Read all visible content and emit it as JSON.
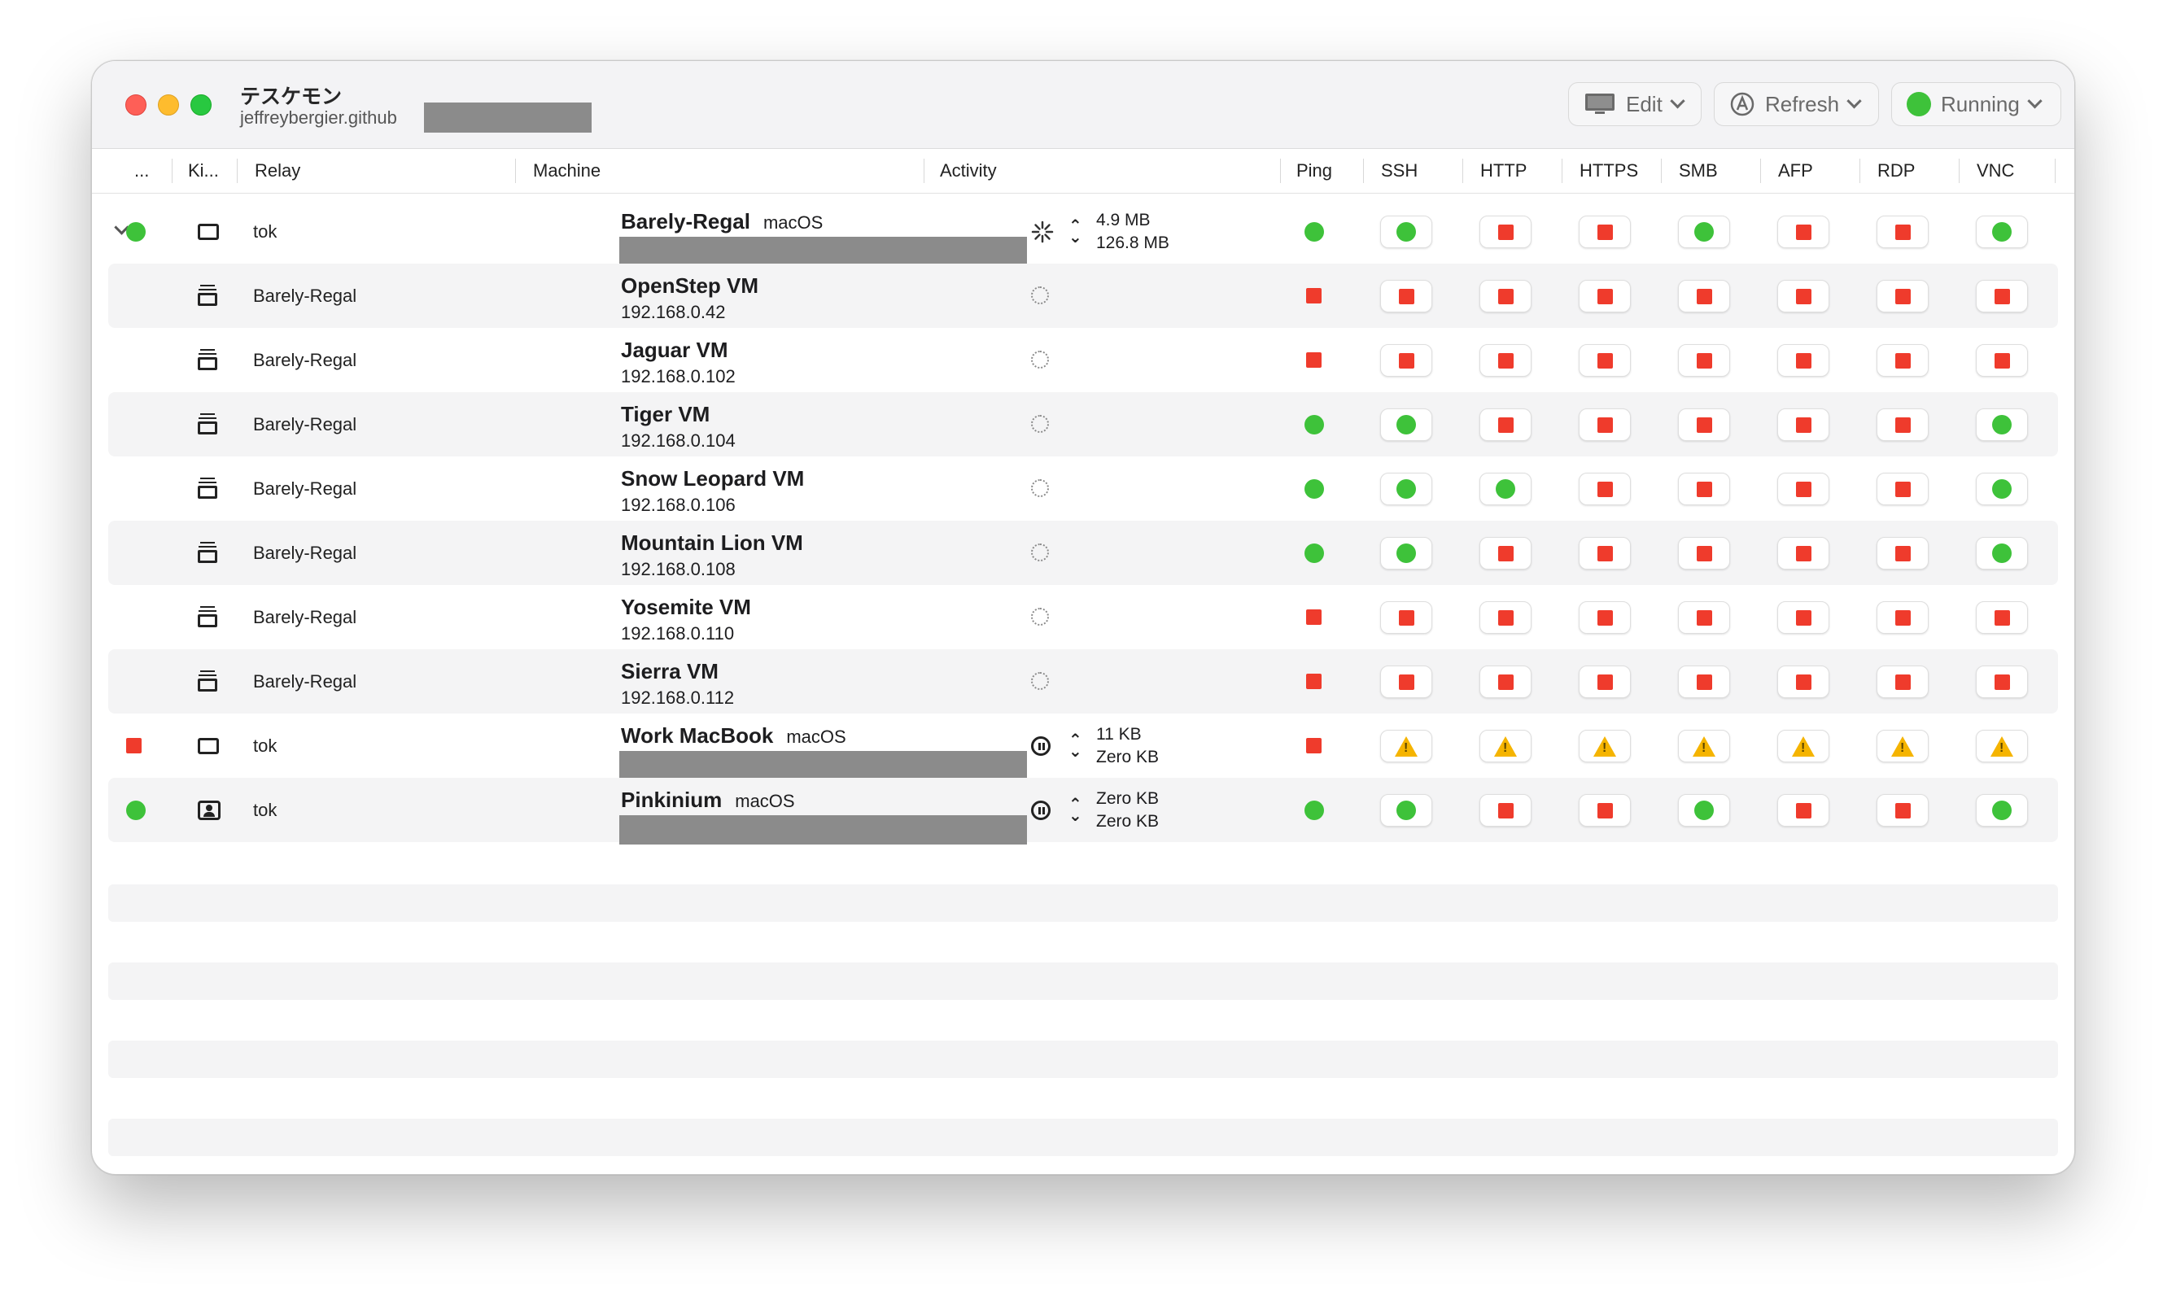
{
  "window": {
    "title": "テスケモン",
    "subtitle": "jeffreybergier.github"
  },
  "toolbar": {
    "edit_label": "Edit",
    "refresh_label": "Refresh",
    "running_label": "Running",
    "running_color": "#3ec23a"
  },
  "columns": {
    "status": "...",
    "kind": "Ki...",
    "relay": "Relay",
    "machine": "Machine",
    "activity": "Activity",
    "ping": "Ping",
    "ssh": "SSH",
    "http": "HTTP",
    "https": "HTTPS",
    "smb": "SMB",
    "afp": "AFP",
    "rdp": "RDP",
    "vnc": "VNC"
  },
  "colors": {
    "ok": "#3ec23a",
    "fail": "#ef3b2c",
    "warn": "#f5b400"
  },
  "rows": [
    {
      "status": "ok",
      "expanded": true,
      "kind": "monitor-icon",
      "relay": "tok",
      "name": "Barely-Regal",
      "os": "macOS",
      "ip": "",
      "redacted": true,
      "activity_icon": "loading-spinner-icon",
      "act1": "4.9 MB",
      "act2": "126.8 MB",
      "ping": "ok",
      "services": [
        "ok",
        "fail",
        "fail",
        "ok",
        "fail",
        "fail",
        "ok"
      ]
    },
    {
      "status": "",
      "kind": "vm-icon",
      "relay": "Barely-Regal",
      "name": "OpenStep VM",
      "os": "",
      "ip": "192.168.0.42",
      "activity_icon": "idle-circle-icon",
      "act1": "",
      "act2": "",
      "ping": "fail",
      "services": [
        "fail",
        "fail",
        "fail",
        "fail",
        "fail",
        "fail",
        "fail"
      ]
    },
    {
      "status": "",
      "kind": "vm-icon",
      "relay": "Barely-Regal",
      "name": "Jaguar VM",
      "os": "",
      "ip": "192.168.0.102",
      "activity_icon": "idle-circle-icon",
      "act1": "",
      "act2": "",
      "ping": "fail",
      "services": [
        "fail",
        "fail",
        "fail",
        "fail",
        "fail",
        "fail",
        "fail"
      ]
    },
    {
      "status": "",
      "kind": "vm-icon",
      "relay": "Barely-Regal",
      "name": "Tiger VM",
      "os": "",
      "ip": "192.168.0.104",
      "activity_icon": "idle-circle-icon",
      "act1": "",
      "act2": "",
      "ping": "ok",
      "services": [
        "ok",
        "fail",
        "fail",
        "fail",
        "fail",
        "fail",
        "ok"
      ]
    },
    {
      "status": "",
      "kind": "vm-icon",
      "relay": "Barely-Regal",
      "name": "Snow Leopard VM",
      "os": "",
      "ip": "192.168.0.106",
      "activity_icon": "idle-circle-icon",
      "act1": "",
      "act2": "",
      "ping": "ok",
      "services": [
        "ok",
        "ok",
        "fail",
        "fail",
        "fail",
        "fail",
        "ok"
      ]
    },
    {
      "status": "",
      "kind": "vm-icon",
      "relay": "Barely-Regal",
      "name": "Mountain Lion VM",
      "os": "",
      "ip": "192.168.0.108",
      "activity_icon": "idle-circle-icon",
      "act1": "",
      "act2": "",
      "ping": "ok",
      "services": [
        "ok",
        "fail",
        "fail",
        "fail",
        "fail",
        "fail",
        "ok"
      ]
    },
    {
      "status": "",
      "kind": "vm-icon",
      "relay": "Barely-Regal",
      "name": "Yosemite VM",
      "os": "",
      "ip": "192.168.0.110",
      "activity_icon": "idle-circle-icon",
      "act1": "",
      "act2": "",
      "ping": "fail",
      "services": [
        "fail",
        "fail",
        "fail",
        "fail",
        "fail",
        "fail",
        "fail"
      ]
    },
    {
      "status": "",
      "kind": "vm-icon",
      "relay": "Barely-Regal",
      "name": "Sierra VM",
      "os": "",
      "ip": "192.168.0.112",
      "activity_icon": "idle-circle-icon",
      "act1": "",
      "act2": "",
      "ping": "fail",
      "services": [
        "fail",
        "fail",
        "fail",
        "fail",
        "fail",
        "fail",
        "fail"
      ]
    },
    {
      "status": "fail",
      "kind": "monitor-icon",
      "relay": "tok",
      "name": "Work MacBook",
      "os": "macOS",
      "ip": "",
      "redacted": true,
      "activity_icon": "pause-icon",
      "act1": "11 KB",
      "act2": "Zero KB",
      "ping": "fail",
      "services": [
        "warn",
        "warn",
        "warn",
        "warn",
        "warn",
        "warn",
        "warn"
      ]
    },
    {
      "status": "ok",
      "kind": "person-icon",
      "relay": "tok",
      "name": "Pinkinium",
      "os": "macOS",
      "ip": "",
      "redacted": true,
      "activity_icon": "pause-icon",
      "act1": "Zero KB",
      "act2": "Zero KB",
      "ping": "ok",
      "services": [
        "ok",
        "fail",
        "fail",
        "ok",
        "fail",
        "fail",
        "ok"
      ]
    }
  ]
}
